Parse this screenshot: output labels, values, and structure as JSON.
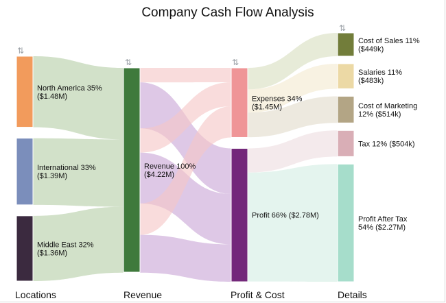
{
  "chart_data": {
    "type": "sankey",
    "title": "Company Cash Flow Analysis",
    "stages": [
      "Locations",
      "Revenue",
      "Profit & Cost",
      "Details"
    ],
    "sort_icon": "sort-arrows-icon",
    "nodes": [
      {
        "id": "na",
        "stage": 0,
        "label_lines": [
          "North America 35%",
          "($1.48M)"
        ],
        "value": 1.48,
        "color": "#f29b5c"
      },
      {
        "id": "intl",
        "stage": 0,
        "label_lines": [
          "International 33%",
          "($1.39M)"
        ],
        "value": 1.39,
        "color": "#7b8ebb"
      },
      {
        "id": "me",
        "stage": 0,
        "label_lines": [
          "Middle East 32%",
          "($1.36M)"
        ],
        "value": 1.36,
        "color": "#3b2a3f"
      },
      {
        "id": "rev",
        "stage": 1,
        "label_lines": [
          "Revenue 100%",
          "($4.22M)"
        ],
        "value": 4.22,
        "color": "#3f7a3c"
      },
      {
        "id": "exp",
        "stage": 2,
        "label_lines": [
          "Expenses 34%",
          "($1.45M)"
        ],
        "value": 1.45,
        "color": "#ef9597"
      },
      {
        "id": "profit",
        "stage": 2,
        "label_lines": [
          "Profit 66% ($2.78M)"
        ],
        "value": 2.78,
        "color": "#73287a"
      },
      {
        "id": "cos",
        "stage": 3,
        "label_lines": [
          "Cost of Sales 11%",
          "($449k)"
        ],
        "value": 0.449,
        "color": "#727d3a"
      },
      {
        "id": "sal",
        "stage": 3,
        "label_lines": [
          "Salaries 11%",
          "($483k)"
        ],
        "value": 0.483,
        "color": "#ecd9a5"
      },
      {
        "id": "mkt",
        "stage": 3,
        "label_lines": [
          "Cost of Marketing",
          "12% ($514k)"
        ],
        "value": 0.514,
        "color": "#b3a585"
      },
      {
        "id": "tax",
        "stage": 3,
        "label_lines": [
          "Tax 12% ($504k)"
        ],
        "value": 0.504,
        "color": "#d9aeb6"
      },
      {
        "id": "pat",
        "stage": 3,
        "label_lines": [
          "Profit After Tax",
          "54% ($2.27M)"
        ],
        "value": 2.27,
        "color": "#a6ddcb"
      }
    ],
    "links": [
      {
        "source": "na",
        "target": "rev",
        "value": 1.48,
        "color": "#b7cfa8"
      },
      {
        "source": "intl",
        "target": "rev",
        "value": 1.39,
        "color": "#b7cfa8"
      },
      {
        "source": "me",
        "target": "rev",
        "value": 1.36,
        "color": "#b7cfa8"
      },
      {
        "source": "rev",
        "target": "exp",
        "value": 0.3,
        "color": "#f6c6c6"
      },
      {
        "source": "rev",
        "target": "profit",
        "value": 0.95,
        "color": "#c9a6d6"
      },
      {
        "source": "rev",
        "target": "exp",
        "value": 0.5,
        "color": "#f6c6c6"
      },
      {
        "source": "rev",
        "target": "profit",
        "value": 1.05,
        "color": "#c9a6d6"
      },
      {
        "source": "rev",
        "target": "exp",
        "value": 0.65,
        "color": "#f6c6c6"
      },
      {
        "source": "rev",
        "target": "profit",
        "value": 0.78,
        "color": "#c9a6d6"
      },
      {
        "source": "exp",
        "target": "cos",
        "value": 0.449,
        "color": "#d8dfc0"
      },
      {
        "source": "exp",
        "target": "sal",
        "value": 0.483,
        "color": "#f4ead0"
      },
      {
        "source": "exp",
        "target": "mkt",
        "value": 0.514,
        "color": "#e2dccb"
      },
      {
        "source": "profit",
        "target": "tax",
        "value": 0.504,
        "color": "#eedde0"
      },
      {
        "source": "profit",
        "target": "pat",
        "value": 2.27,
        "color": "#d3eee4"
      }
    ]
  }
}
